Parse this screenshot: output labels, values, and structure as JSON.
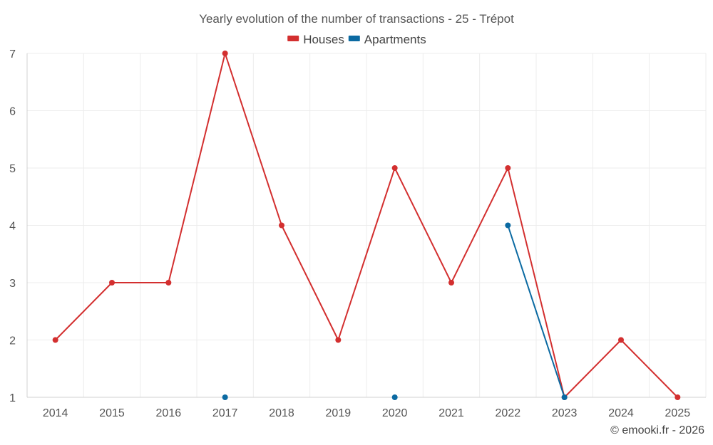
{
  "chart_data": {
    "type": "line",
    "title": "Yearly evolution of the number of transactions - 25 - Trépot",
    "categories": [
      "2014",
      "2015",
      "2016",
      "2017",
      "2018",
      "2019",
      "2020",
      "2021",
      "2022",
      "2023",
      "2024",
      "2025"
    ],
    "series": [
      {
        "name": "Houses",
        "color": "#d32f2f",
        "values": [
          2,
          3,
          3,
          7,
          4,
          2,
          5,
          3,
          5,
          1,
          2,
          1
        ]
      },
      {
        "name": "Apartments",
        "color": "#0b6aa2",
        "values": [
          null,
          null,
          null,
          1,
          null,
          null,
          1,
          null,
          4,
          1,
          null,
          null
        ]
      }
    ],
    "ylim": [
      1,
      7
    ],
    "yticks": [
      1,
      2,
      3,
      4,
      5,
      6,
      7
    ],
    "xlabel": "",
    "ylabel": "",
    "grid": true,
    "legend_position": "top-center"
  },
  "credit": "© emooki.fr - 2026"
}
